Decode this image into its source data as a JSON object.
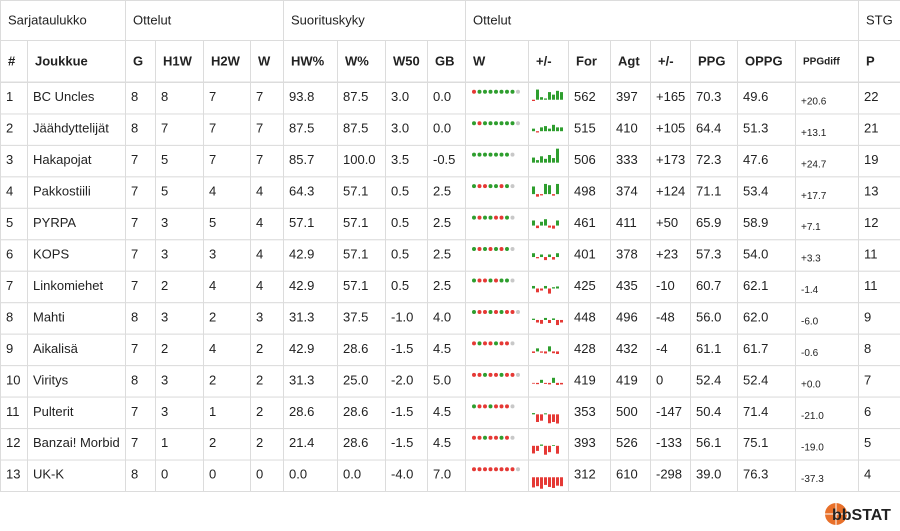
{
  "table": {
    "groups": [
      {
        "label": "Sarjataulukko",
        "span": 2
      },
      {
        "label": "Ottelut",
        "span": 4
      },
      {
        "label": "Suorituskyky",
        "span": 4
      },
      {
        "label": "Ottelut",
        "span": 8
      },
      {
        "label": "STG",
        "span": 1
      }
    ],
    "columns": [
      "#",
      "Joukkue",
      "G",
      "H1W",
      "H2W",
      "W",
      "HW%",
      "W%",
      "W50",
      "GB",
      "W",
      "+/-",
      "For",
      "Agt",
      "+/-",
      "PPG",
      "OPPG",
      "PPGdiff",
      "P"
    ],
    "rows": [
      {
        "cells": [
          "1",
          "BC Uncles",
          "8",
          "8",
          "7",
          "7",
          "93.8",
          "87.5",
          "3.0",
          "0.0",
          "562",
          "397",
          "+165",
          "70.3",
          "49.6",
          "+20.6",
          "22"
        ],
        "form": [
          0,
          1,
          1,
          1,
          1,
          1,
          1,
          1
        ],
        "margins": [
          -5,
          40,
          10,
          5,
          30,
          20,
          35,
          30
        ]
      },
      {
        "cells": [
          "2",
          "Jäähdyttelijät",
          "8",
          "7",
          "7",
          "7",
          "87.5",
          "87.5",
          "3.0",
          "0.0",
          "515",
          "410",
          "+105",
          "64.4",
          "51.3",
          "+13.1",
          "21"
        ],
        "form": [
          1,
          0,
          1,
          1,
          1,
          1,
          1,
          1
        ],
        "margins": [
          10,
          -5,
          15,
          20,
          10,
          25,
          15,
          15
        ]
      },
      {
        "cells": [
          "3",
          "Hakapojat",
          "7",
          "5",
          "7",
          "7",
          "85.7",
          "100.0",
          "3.5",
          "-0.5",
          "506",
          "333",
          "+173",
          "72.3",
          "47.6",
          "+24.7",
          "19"
        ],
        "form": [
          1,
          1,
          1,
          1,
          1,
          1,
          1
        ],
        "margins": [
          20,
          10,
          25,
          15,
          30,
          18,
          55
        ]
      },
      {
        "cells": [
          "4",
          "Pakkostiili",
          "7",
          "5",
          "4",
          "4",
          "64.3",
          "57.1",
          "0.5",
          "2.5",
          "498",
          "374",
          "+124",
          "71.1",
          "53.4",
          "+17.7",
          "13"
        ],
        "form": [
          1,
          0,
          0,
          1,
          1,
          0,
          1
        ],
        "margins": [
          30,
          -10,
          -5,
          40,
          35,
          -6,
          40
        ]
      },
      {
        "cells": [
          "5",
          "PYRPA",
          "7",
          "3",
          "5",
          "4",
          "57.1",
          "57.1",
          "0.5",
          "2.5",
          "461",
          "411",
          "+50",
          "65.9",
          "58.9",
          "+7.1",
          "12"
        ],
        "form": [
          1,
          0,
          1,
          1,
          0,
          0,
          1
        ],
        "margins": [
          20,
          -10,
          15,
          25,
          -8,
          -12,
          20
        ]
      },
      {
        "cells": [
          "6",
          "KOPS",
          "7",
          "3",
          "3",
          "4",
          "42.9",
          "57.1",
          "0.5",
          "2.5",
          "401",
          "378",
          "+23",
          "57.3",
          "54.0",
          "+3.3",
          "11"
        ],
        "form": [
          1,
          0,
          1,
          0,
          1,
          0,
          1
        ],
        "margins": [
          15,
          -5,
          10,
          -12,
          10,
          -10,
          15
        ]
      },
      {
        "cells": [
          "7",
          "Linkomiehet",
          "7",
          "2",
          "4",
          "4",
          "42.9",
          "57.1",
          "0.5",
          "2.5",
          "425",
          "435",
          "-10",
          "60.7",
          "62.1",
          "-1.4",
          "11"
        ],
        "form": [
          1,
          0,
          0,
          1,
          0,
          1,
          1
        ],
        "margins": [
          10,
          -15,
          -8,
          10,
          -20,
          5,
          8
        ]
      },
      {
        "cells": [
          "8",
          "Mahti",
          "8",
          "3",
          "2",
          "3",
          "31.3",
          "37.5",
          "-1.0",
          "4.0",
          "448",
          "496",
          "-48",
          "56.0",
          "62.0",
          "-6.0",
          "9"
        ],
        "form": [
          1,
          0,
          0,
          1,
          0,
          1,
          0,
          0
        ],
        "margins": [
          5,
          -10,
          -15,
          8,
          -12,
          6,
          -20,
          -10
        ]
      },
      {
        "cells": [
          "9",
          "Aikalisä",
          "7",
          "2",
          "4",
          "2",
          "42.9",
          "28.6",
          "-1.5",
          "4.5",
          "428",
          "432",
          "-4",
          "61.1",
          "61.7",
          "-0.6",
          "8"
        ],
        "form": [
          0,
          1,
          0,
          0,
          1,
          0,
          0
        ],
        "margins": [
          -6,
          12,
          -5,
          -8,
          20,
          -7,
          -10
        ]
      },
      {
        "cells": [
          "10",
          "Viritys",
          "8",
          "3",
          "2",
          "2",
          "31.3",
          "25.0",
          "-2.0",
          "5.0",
          "419",
          "419",
          "0",
          "52.4",
          "52.4",
          "+0.0",
          "7"
        ],
        "form": [
          0,
          0,
          1,
          0,
          0,
          1,
          0,
          0
        ],
        "margins": [
          -3,
          -5,
          12,
          -4,
          -6,
          20,
          -8,
          -6
        ]
      },
      {
        "cells": [
          "11",
          "Pulterit",
          "7",
          "3",
          "1",
          "2",
          "28.6",
          "28.6",
          "-1.5",
          "4.5",
          "353",
          "500",
          "-147",
          "50.4",
          "71.4",
          "-21.0",
          "6"
        ],
        "form": [
          1,
          0,
          0,
          1,
          0,
          0,
          0
        ],
        "margins": [
          5,
          -30,
          -25,
          4,
          -35,
          -30,
          -36
        ]
      },
      {
        "cells": [
          "12",
          "Banzai! Morbid",
          "7",
          "1",
          "2",
          "2",
          "21.4",
          "28.6",
          "-1.5",
          "4.5",
          "393",
          "526",
          "-133",
          "56.1",
          "75.1",
          "-19.0",
          "5"
        ],
        "form": [
          0,
          0,
          1,
          0,
          0,
          1,
          0
        ],
        "margins": [
          -30,
          -20,
          5,
          -35,
          -25,
          3,
          -31
        ]
      },
      {
        "cells": [
          "13",
          "UK-K",
          "8",
          "0",
          "0",
          "0",
          "0.0",
          "0.0",
          "-4.0",
          "7.0",
          "312",
          "610",
          "-298",
          "39.0",
          "76.3",
          "-37.3",
          "4"
        ],
        "form": [
          0,
          0,
          0,
          0,
          0,
          0,
          0,
          0
        ],
        "margins": [
          -40,
          -35,
          -45,
          -30,
          -38,
          -42,
          -33,
          -35
        ]
      }
    ]
  },
  "footer": {
    "logo": "bbSTAT"
  }
}
